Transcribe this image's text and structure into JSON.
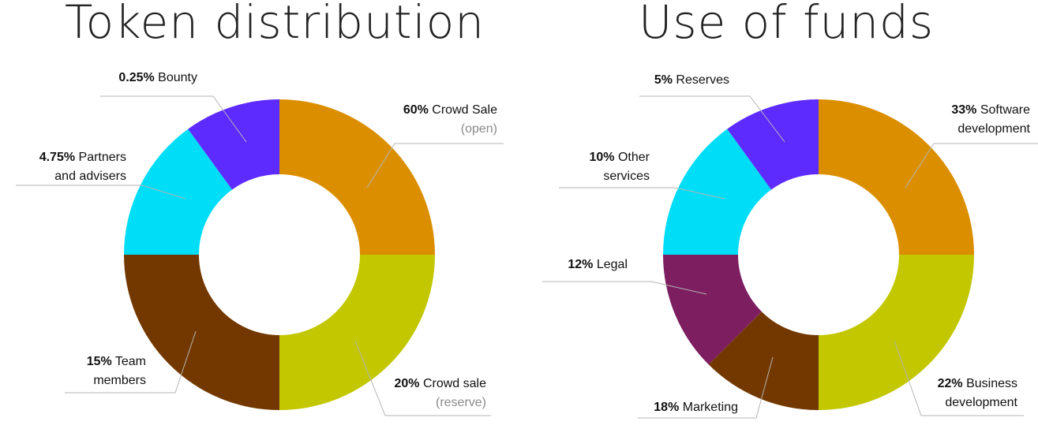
{
  "chart_data": [
    {
      "type": "donut",
      "title": "Token distribution",
      "slices": [
        {
          "pct": "60%",
          "value": 60,
          "lines": [
            "Crowd Sale"
          ],
          "sub": "(open)",
          "color": "#DB8F00"
        },
        {
          "pct": "20%",
          "value": 20,
          "lines": [
            "Crowd sale"
          ],
          "sub": "(reserve)",
          "color": "#C2C700"
        },
        {
          "pct": "15%",
          "value": 15,
          "lines": [
            "Team",
            "members"
          ],
          "color": "#733800"
        },
        {
          "pct": "4.75%",
          "value": 4.75,
          "lines": [
            "Partners",
            "and advisers"
          ],
          "color": "#00DDF7"
        },
        {
          "pct": "0.25%",
          "value": 0.25,
          "lines": [
            "Bounty"
          ],
          "color": "#5E2BFF"
        }
      ]
    },
    {
      "type": "donut",
      "title": "Use of funds",
      "slices": [
        {
          "pct": "33%",
          "value": 33,
          "lines": [
            "Software",
            "development"
          ],
          "color": "#DB8F00"
        },
        {
          "pct": "22%",
          "value": 22,
          "lines": [
            "Business",
            "development"
          ],
          "color": "#C2C700"
        },
        {
          "pct": "18%",
          "value": 18,
          "lines": [
            "Marketing"
          ],
          "color": "#733800"
        },
        {
          "pct": "12%",
          "value": 12,
          "lines": [
            "Legal"
          ],
          "color": "#7D1E60"
        },
        {
          "pct": "10%",
          "value": 10,
          "lines": [
            "Other",
            "services"
          ],
          "color": "#00DDF7"
        },
        {
          "pct": "5%",
          "value": 5,
          "lines": [
            "Reserves"
          ],
          "color": "#5E2BFF"
        }
      ]
    }
  ]
}
